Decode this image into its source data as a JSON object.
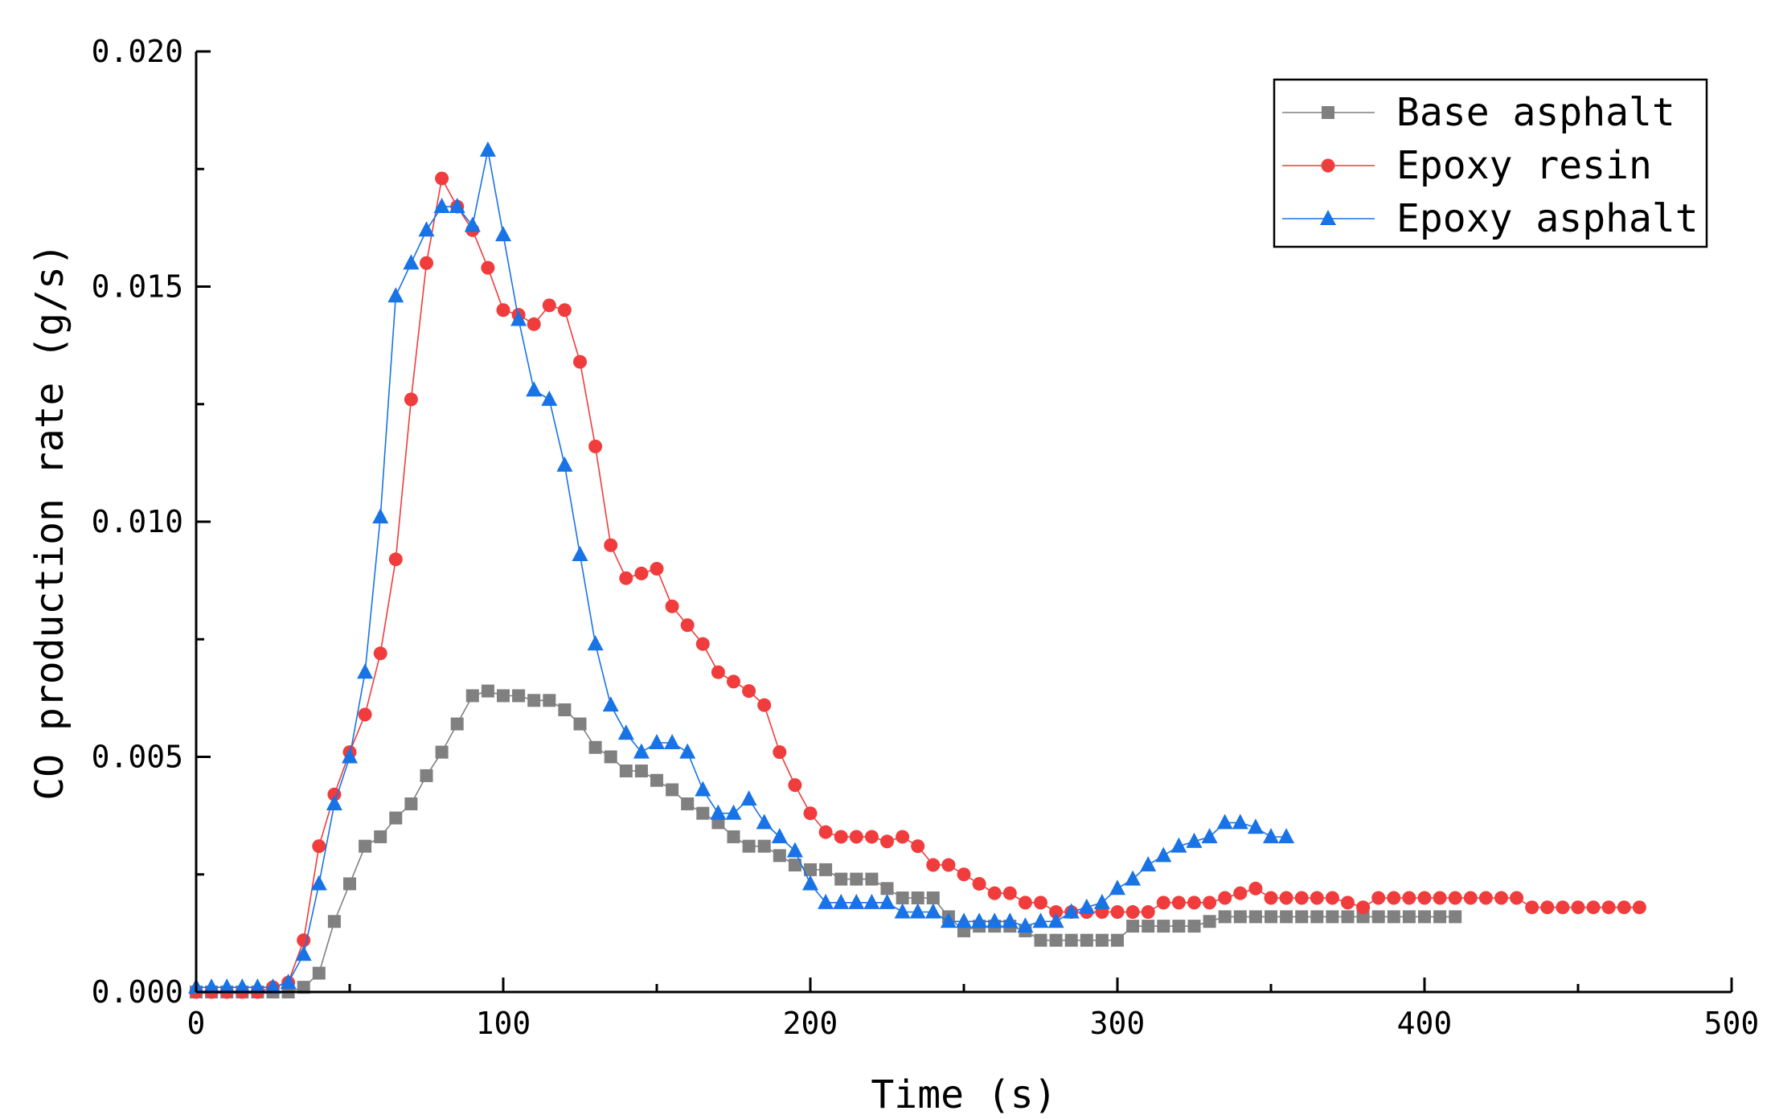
{
  "chart_data": {
    "type": "line",
    "title": "",
    "xlabel": "Time (s)",
    "ylabel": "CO production rate (g/s)",
    "xlim": [
      0,
      500
    ],
    "ylim": [
      0,
      0.02
    ],
    "x_ticks": [
      0,
      100,
      200,
      300,
      400,
      500
    ],
    "x_tick_labels": [
      "0",
      "100",
      "200",
      "300",
      "400",
      "500"
    ],
    "y_ticks": [
      0,
      0.005,
      0.01,
      0.015,
      0.02
    ],
    "y_tick_labels": [
      "0.000",
      "0.005",
      "0.010",
      "0.015",
      "0.020"
    ],
    "grid": false,
    "legend_position": "top-right",
    "series": [
      {
        "name": "Base asphalt",
        "color": "#808080",
        "marker": "square",
        "x": [
          0,
          5,
          10,
          15,
          20,
          25,
          30,
          35,
          40,
          45,
          50,
          55,
          60,
          65,
          70,
          75,
          80,
          85,
          90,
          95,
          100,
          105,
          110,
          115,
          120,
          125,
          130,
          135,
          140,
          145,
          150,
          155,
          160,
          165,
          170,
          175,
          180,
          185,
          190,
          195,
          200,
          205,
          210,
          215,
          220,
          225,
          230,
          235,
          240,
          245,
          250,
          255,
          260,
          265,
          270,
          275,
          280,
          285,
          290,
          295,
          300,
          305,
          310,
          315,
          320,
          325,
          330,
          335,
          340,
          345,
          350,
          355,
          360,
          365,
          370,
          375,
          380,
          385,
          390,
          395,
          400,
          405,
          410
        ],
        "y": [
          0,
          0,
          0,
          0,
          0,
          0,
          0,
          0.0001,
          0.0004,
          0.0015,
          0.0023,
          0.0031,
          0.0033,
          0.0037,
          0.004,
          0.0046,
          0.0051,
          0.0057,
          0.0063,
          0.0064,
          0.0063,
          0.0063,
          0.0062,
          0.0062,
          0.006,
          0.0057,
          0.0052,
          0.005,
          0.0047,
          0.0047,
          0.0045,
          0.0043,
          0.004,
          0.0038,
          0.0036,
          0.0033,
          0.0031,
          0.0031,
          0.0029,
          0.0027,
          0.0026,
          0.0026,
          0.0024,
          0.0024,
          0.0024,
          0.0022,
          0.002,
          0.002,
          0.002,
          0.0016,
          0.0013,
          0.0014,
          0.0014,
          0.0014,
          0.0013,
          0.0011,
          0.0011,
          0.0011,
          0.0011,
          0.0011,
          0.0011,
          0.0014,
          0.0014,
          0.0014,
          0.0014,
          0.0014,
          0.0015,
          0.0016,
          0.0016,
          0.0016,
          0.0016,
          0.0016,
          0.0016,
          0.0016,
          0.0016,
          0.0016,
          0.0016,
          0.0016,
          0.0016,
          0.0016,
          0.0016,
          0.0016,
          0.0016
        ]
      },
      {
        "name": "Epoxy resin",
        "color": "#f03c3c",
        "marker": "circle",
        "x": [
          0,
          5,
          10,
          15,
          20,
          25,
          30,
          35,
          40,
          45,
          50,
          55,
          60,
          65,
          70,
          75,
          80,
          85,
          90,
          95,
          100,
          105,
          110,
          115,
          120,
          125,
          130,
          135,
          140,
          145,
          150,
          155,
          160,
          165,
          170,
          175,
          180,
          185,
          190,
          195,
          200,
          205,
          210,
          215,
          220,
          225,
          230,
          235,
          240,
          245,
          250,
          255,
          260,
          265,
          270,
          275,
          280,
          285,
          290,
          295,
          300,
          305,
          310,
          315,
          320,
          325,
          330,
          335,
          340,
          345,
          350,
          355,
          360,
          365,
          370,
          375,
          380,
          385,
          390,
          395,
          400,
          405,
          410,
          415,
          420,
          425,
          430,
          435,
          440,
          445,
          450,
          455,
          460,
          465,
          470
        ],
        "y": [
          0,
          0,
          0,
          0,
          0,
          0.0001,
          0.0002,
          0.0011,
          0.0031,
          0.0042,
          0.0051,
          0.0059,
          0.0072,
          0.0092,
          0.0126,
          0.0155,
          0.0173,
          0.0167,
          0.0162,
          0.0154,
          0.0145,
          0.0144,
          0.0142,
          0.0146,
          0.0145,
          0.0134,
          0.0116,
          0.0095,
          0.0088,
          0.0089,
          0.009,
          0.0082,
          0.0078,
          0.0074,
          0.0068,
          0.0066,
          0.0064,
          0.0061,
          0.0051,
          0.0044,
          0.0038,
          0.0034,
          0.0033,
          0.0033,
          0.0033,
          0.0032,
          0.0033,
          0.0031,
          0.0027,
          0.0027,
          0.0025,
          0.0023,
          0.0021,
          0.0021,
          0.0019,
          0.0019,
          0.0017,
          0.0017,
          0.0017,
          0.0017,
          0.0017,
          0.0017,
          0.0017,
          0.0019,
          0.0019,
          0.0019,
          0.0019,
          0.002,
          0.0021,
          0.0022,
          0.002,
          0.002,
          0.002,
          0.002,
          0.002,
          0.0019,
          0.0018,
          0.002,
          0.002,
          0.002,
          0.002,
          0.002,
          0.002,
          0.002,
          0.002,
          0.002,
          0.002,
          0.0018,
          0.0018,
          0.0018,
          0.0018,
          0.0018,
          0.0018,
          0.0018,
          0.0018
        ]
      },
      {
        "name": "Epoxy asphalt",
        "color": "#1873e6",
        "marker": "triangle",
        "x": [
          0,
          5,
          10,
          15,
          20,
          25,
          30,
          35,
          40,
          45,
          50,
          55,
          60,
          65,
          70,
          75,
          80,
          85,
          90,
          95,
          100,
          105,
          110,
          115,
          120,
          125,
          130,
          135,
          140,
          145,
          150,
          155,
          160,
          165,
          170,
          175,
          180,
          185,
          190,
          195,
          200,
          205,
          210,
          215,
          220,
          225,
          230,
          235,
          240,
          245,
          250,
          255,
          260,
          265,
          270,
          275,
          280,
          285,
          290,
          295,
          300,
          305,
          310,
          315,
          320,
          325,
          330,
          335,
          340,
          345,
          350,
          355
        ],
        "y": [
          0.0001,
          0.0001,
          0.0001,
          0.0001,
          0.0001,
          0.0001,
          0.0002,
          0.0008,
          0.0023,
          0.004,
          0.005,
          0.0068,
          0.0101,
          0.0148,
          0.0155,
          0.0162,
          0.0167,
          0.0167,
          0.0163,
          0.0179,
          0.0161,
          0.0143,
          0.0128,
          0.0126,
          0.0112,
          0.0093,
          0.0074,
          0.0061,
          0.0055,
          0.0051,
          0.0053,
          0.0053,
          0.0051,
          0.0043,
          0.0038,
          0.0038,
          0.0041,
          0.0036,
          0.0033,
          0.003,
          0.0023,
          0.0019,
          0.0019,
          0.0019,
          0.0019,
          0.0019,
          0.0017,
          0.0017,
          0.0017,
          0.0015,
          0.0015,
          0.0015,
          0.0015,
          0.0015,
          0.0014,
          0.0015,
          0.0015,
          0.0017,
          0.0018,
          0.0019,
          0.0022,
          0.0024,
          0.0027,
          0.0029,
          0.0031,
          0.0032,
          0.0033,
          0.0036,
          0.0036,
          0.0035,
          0.0033,
          0.0033
        ]
      }
    ]
  }
}
